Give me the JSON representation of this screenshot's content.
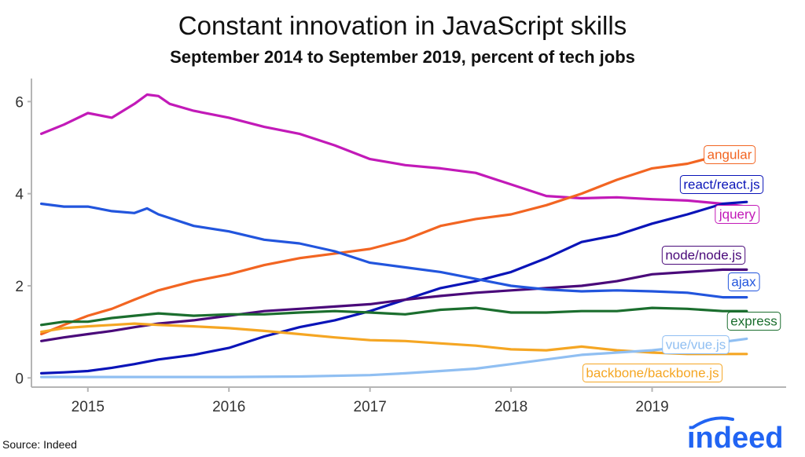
{
  "title": "Constant innovation in JavaScript skills",
  "subtitle": "September 2014 to September 2019, percent of tech jobs",
  "source": "Source: Indeed",
  "logo_text": "indeed",
  "colors": {
    "logo": "#2164f3"
  },
  "chart_data": {
    "type": "line",
    "title": "Constant innovation in JavaScript skills",
    "subtitle": "September 2014 to September 2019, percent of tech jobs",
    "xlabel": "",
    "ylabel": "",
    "xlim": [
      2014.6,
      2019.95
    ],
    "ylim": [
      -0.2,
      6.5
    ],
    "x_ticks": [
      2015,
      2016,
      2017,
      2018,
      2019
    ],
    "x_tick_labels": [
      "2015",
      "2016",
      "2017",
      "2018",
      "2019"
    ],
    "y_ticks": [
      0,
      2,
      4,
      6
    ],
    "y_tick_labels": [
      "0",
      "2",
      "4",
      "6"
    ],
    "grid": false,
    "legend": "direct labels at line ends",
    "series": [
      {
        "name": "jquery",
        "color": "#c21ab8",
        "x": [
          2014.67,
          2014.83,
          2015.0,
          2015.17,
          2015.33,
          2015.42,
          2015.5,
          2015.58,
          2015.75,
          2016.0,
          2016.25,
          2016.5,
          2016.75,
          2017.0,
          2017.25,
          2017.5,
          2017.75,
          2018.0,
          2018.25,
          2018.5,
          2018.75,
          2019.0,
          2019.25,
          2019.5,
          2019.67
        ],
        "y": [
          5.3,
          5.5,
          5.75,
          5.65,
          5.95,
          6.15,
          6.12,
          5.95,
          5.8,
          5.65,
          5.45,
          5.3,
          5.05,
          4.75,
          4.62,
          4.55,
          4.45,
          4.2,
          3.95,
          3.9,
          3.92,
          3.88,
          3.85,
          3.78,
          3.72
        ]
      },
      {
        "name": "angular",
        "color": "#f26522",
        "x": [
          2014.67,
          2014.83,
          2015.0,
          2015.17,
          2015.33,
          2015.5,
          2015.75,
          2016.0,
          2016.25,
          2016.5,
          2016.75,
          2017.0,
          2017.25,
          2017.5,
          2017.75,
          2018.0,
          2018.25,
          2018.5,
          2018.75,
          2019.0,
          2019.25,
          2019.5,
          2019.67
        ],
        "y": [
          0.95,
          1.15,
          1.35,
          1.5,
          1.7,
          1.9,
          2.1,
          2.25,
          2.45,
          2.6,
          2.7,
          2.8,
          3.0,
          3.3,
          3.45,
          3.55,
          3.75,
          4.0,
          4.3,
          4.55,
          4.65,
          4.85,
          4.95
        ]
      },
      {
        "name": "react/react.js",
        "color": "#0a14b8",
        "x": [
          2014.67,
          2014.83,
          2015.0,
          2015.17,
          2015.33,
          2015.5,
          2015.75,
          2016.0,
          2016.25,
          2016.5,
          2016.75,
          2017.0,
          2017.25,
          2017.5,
          2017.75,
          2018.0,
          2018.25,
          2018.5,
          2018.75,
          2019.0,
          2019.25,
          2019.5,
          2019.67
        ],
        "y": [
          0.1,
          0.12,
          0.15,
          0.22,
          0.3,
          0.4,
          0.5,
          0.65,
          0.9,
          1.1,
          1.25,
          1.45,
          1.7,
          1.95,
          2.1,
          2.3,
          2.6,
          2.95,
          3.1,
          3.35,
          3.55,
          3.78,
          3.82
        ]
      },
      {
        "name": "node/node.js",
        "color": "#4a0a7a",
        "x": [
          2014.67,
          2014.83,
          2015.0,
          2015.17,
          2015.33,
          2015.5,
          2015.75,
          2016.0,
          2016.25,
          2016.5,
          2016.75,
          2017.0,
          2017.25,
          2017.5,
          2017.75,
          2018.0,
          2018.25,
          2018.5,
          2018.75,
          2019.0,
          2019.25,
          2019.5,
          2019.67
        ],
        "y": [
          0.8,
          0.88,
          0.95,
          1.02,
          1.1,
          1.18,
          1.25,
          1.35,
          1.45,
          1.5,
          1.55,
          1.6,
          1.7,
          1.78,
          1.85,
          1.9,
          1.95,
          2.0,
          2.1,
          2.25,
          2.3,
          2.35,
          2.35
        ]
      },
      {
        "name": "ajax",
        "color": "#2255dd",
        "x": [
          2014.67,
          2014.83,
          2015.0,
          2015.17,
          2015.33,
          2015.42,
          2015.5,
          2015.75,
          2016.0,
          2016.25,
          2016.5,
          2016.75,
          2017.0,
          2017.25,
          2017.5,
          2017.75,
          2018.0,
          2018.25,
          2018.5,
          2018.75,
          2019.0,
          2019.25,
          2019.5,
          2019.67
        ],
        "y": [
          3.78,
          3.72,
          3.72,
          3.62,
          3.58,
          3.68,
          3.55,
          3.3,
          3.18,
          3.0,
          2.92,
          2.75,
          2.5,
          2.4,
          2.3,
          2.15,
          2.0,
          1.92,
          1.88,
          1.9,
          1.88,
          1.85,
          1.75,
          1.75
        ]
      },
      {
        "name": "express",
        "color": "#1b6e2e",
        "x": [
          2014.67,
          2014.83,
          2015.0,
          2015.17,
          2015.33,
          2015.5,
          2015.75,
          2016.0,
          2016.25,
          2016.5,
          2016.75,
          2017.0,
          2017.25,
          2017.5,
          2017.75,
          2018.0,
          2018.25,
          2018.5,
          2018.75,
          2019.0,
          2019.25,
          2019.5,
          2019.67
        ],
        "y": [
          1.15,
          1.22,
          1.22,
          1.3,
          1.35,
          1.4,
          1.35,
          1.38,
          1.38,
          1.42,
          1.45,
          1.42,
          1.38,
          1.48,
          1.52,
          1.42,
          1.42,
          1.45,
          1.45,
          1.52,
          1.5,
          1.45,
          1.45
        ]
      },
      {
        "name": "backbone/backbone.js",
        "color": "#f5a623",
        "x": [
          2014.67,
          2014.83,
          2015.0,
          2015.17,
          2015.33,
          2015.5,
          2015.75,
          2016.0,
          2016.25,
          2016.5,
          2016.75,
          2017.0,
          2017.25,
          2017.5,
          2017.75,
          2018.0,
          2018.25,
          2018.5,
          2018.75,
          2019.0,
          2019.25,
          2019.5,
          2019.67
        ],
        "y": [
          1.0,
          1.08,
          1.12,
          1.15,
          1.18,
          1.15,
          1.12,
          1.08,
          1.02,
          0.95,
          0.88,
          0.82,
          0.8,
          0.75,
          0.7,
          0.62,
          0.6,
          0.68,
          0.6,
          0.55,
          0.52,
          0.52,
          0.52
        ]
      },
      {
        "name": "vue/vue.js",
        "color": "#90bff2",
        "x": [
          2014.67,
          2015.0,
          2015.5,
          2016.0,
          2016.5,
          2017.0,
          2017.25,
          2017.5,
          2017.75,
          2018.0,
          2018.25,
          2018.5,
          2018.75,
          2019.0,
          2019.25,
          2019.5,
          2019.67
        ],
        "y": [
          0.02,
          0.02,
          0.02,
          0.02,
          0.03,
          0.06,
          0.1,
          0.15,
          0.2,
          0.3,
          0.4,
          0.5,
          0.55,
          0.6,
          0.68,
          0.78,
          0.85
        ]
      }
    ]
  }
}
